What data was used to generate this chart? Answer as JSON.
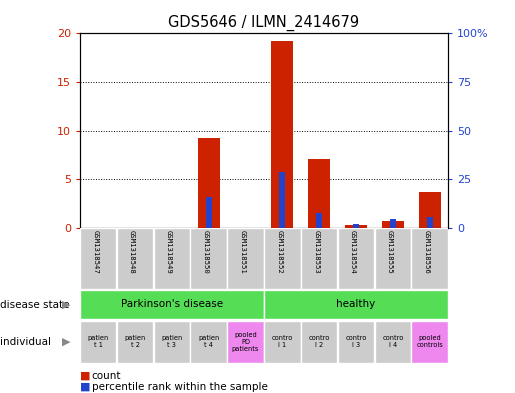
{
  "title": "GDS5646 / ILMN_2414679",
  "samples": [
    "GSM1318547",
    "GSM1318548",
    "GSM1318549",
    "GSM1318550",
    "GSM1318551",
    "GSM1318552",
    "GSM1318553",
    "GSM1318554",
    "GSM1318555",
    "GSM1318556"
  ],
  "counts": [
    0,
    0,
    0,
    9.2,
    0,
    19.2,
    7.1,
    0.3,
    0.7,
    3.7
  ],
  "percentile_ranks": [
    0,
    0,
    0,
    16.0,
    0,
    29.0,
    7.5,
    2.0,
    4.5,
    5.5
  ],
  "bar_color": "#cc2200",
  "percentile_color": "#2244cc",
  "ylim_left": [
    0,
    20
  ],
  "ylim_right": [
    0,
    100
  ],
  "yticks_left": [
    0,
    5,
    10,
    15,
    20
  ],
  "ytick_labels_left": [
    "0",
    "5",
    "10",
    "15",
    "20"
  ],
  "yticks_right": [
    0,
    25,
    50,
    75,
    100
  ],
  "ytick_labels_right": [
    "0",
    "25",
    "50",
    "75",
    "100%"
  ],
  "disease_state_labels": [
    "Parkinson's disease",
    "healthy"
  ],
  "disease_state_groups": [
    [
      0,
      1,
      2,
      3,
      4
    ],
    [
      5,
      6,
      7,
      8,
      9
    ]
  ],
  "disease_state_color": "#55dd55",
  "individual_labels": [
    "patien\nt 1",
    "patien\nt 2",
    "patien\nt 3",
    "patien\nt 4",
    "pooled\nPD\npatients",
    "contro\nl 1",
    "contro\nl 2",
    "contro\nl 3",
    "contro\nl 4",
    "pooled\ncontrols"
  ],
  "individual_colors": [
    "#cccccc",
    "#cccccc",
    "#cccccc",
    "#cccccc",
    "#ee88ee",
    "#cccccc",
    "#cccccc",
    "#cccccc",
    "#cccccc",
    "#ee88ee"
  ],
  "legend_count_color": "#cc2200",
  "legend_percentile_color": "#2244cc",
  "sample_box_color": "#cccccc",
  "left_label_color": "#555555"
}
